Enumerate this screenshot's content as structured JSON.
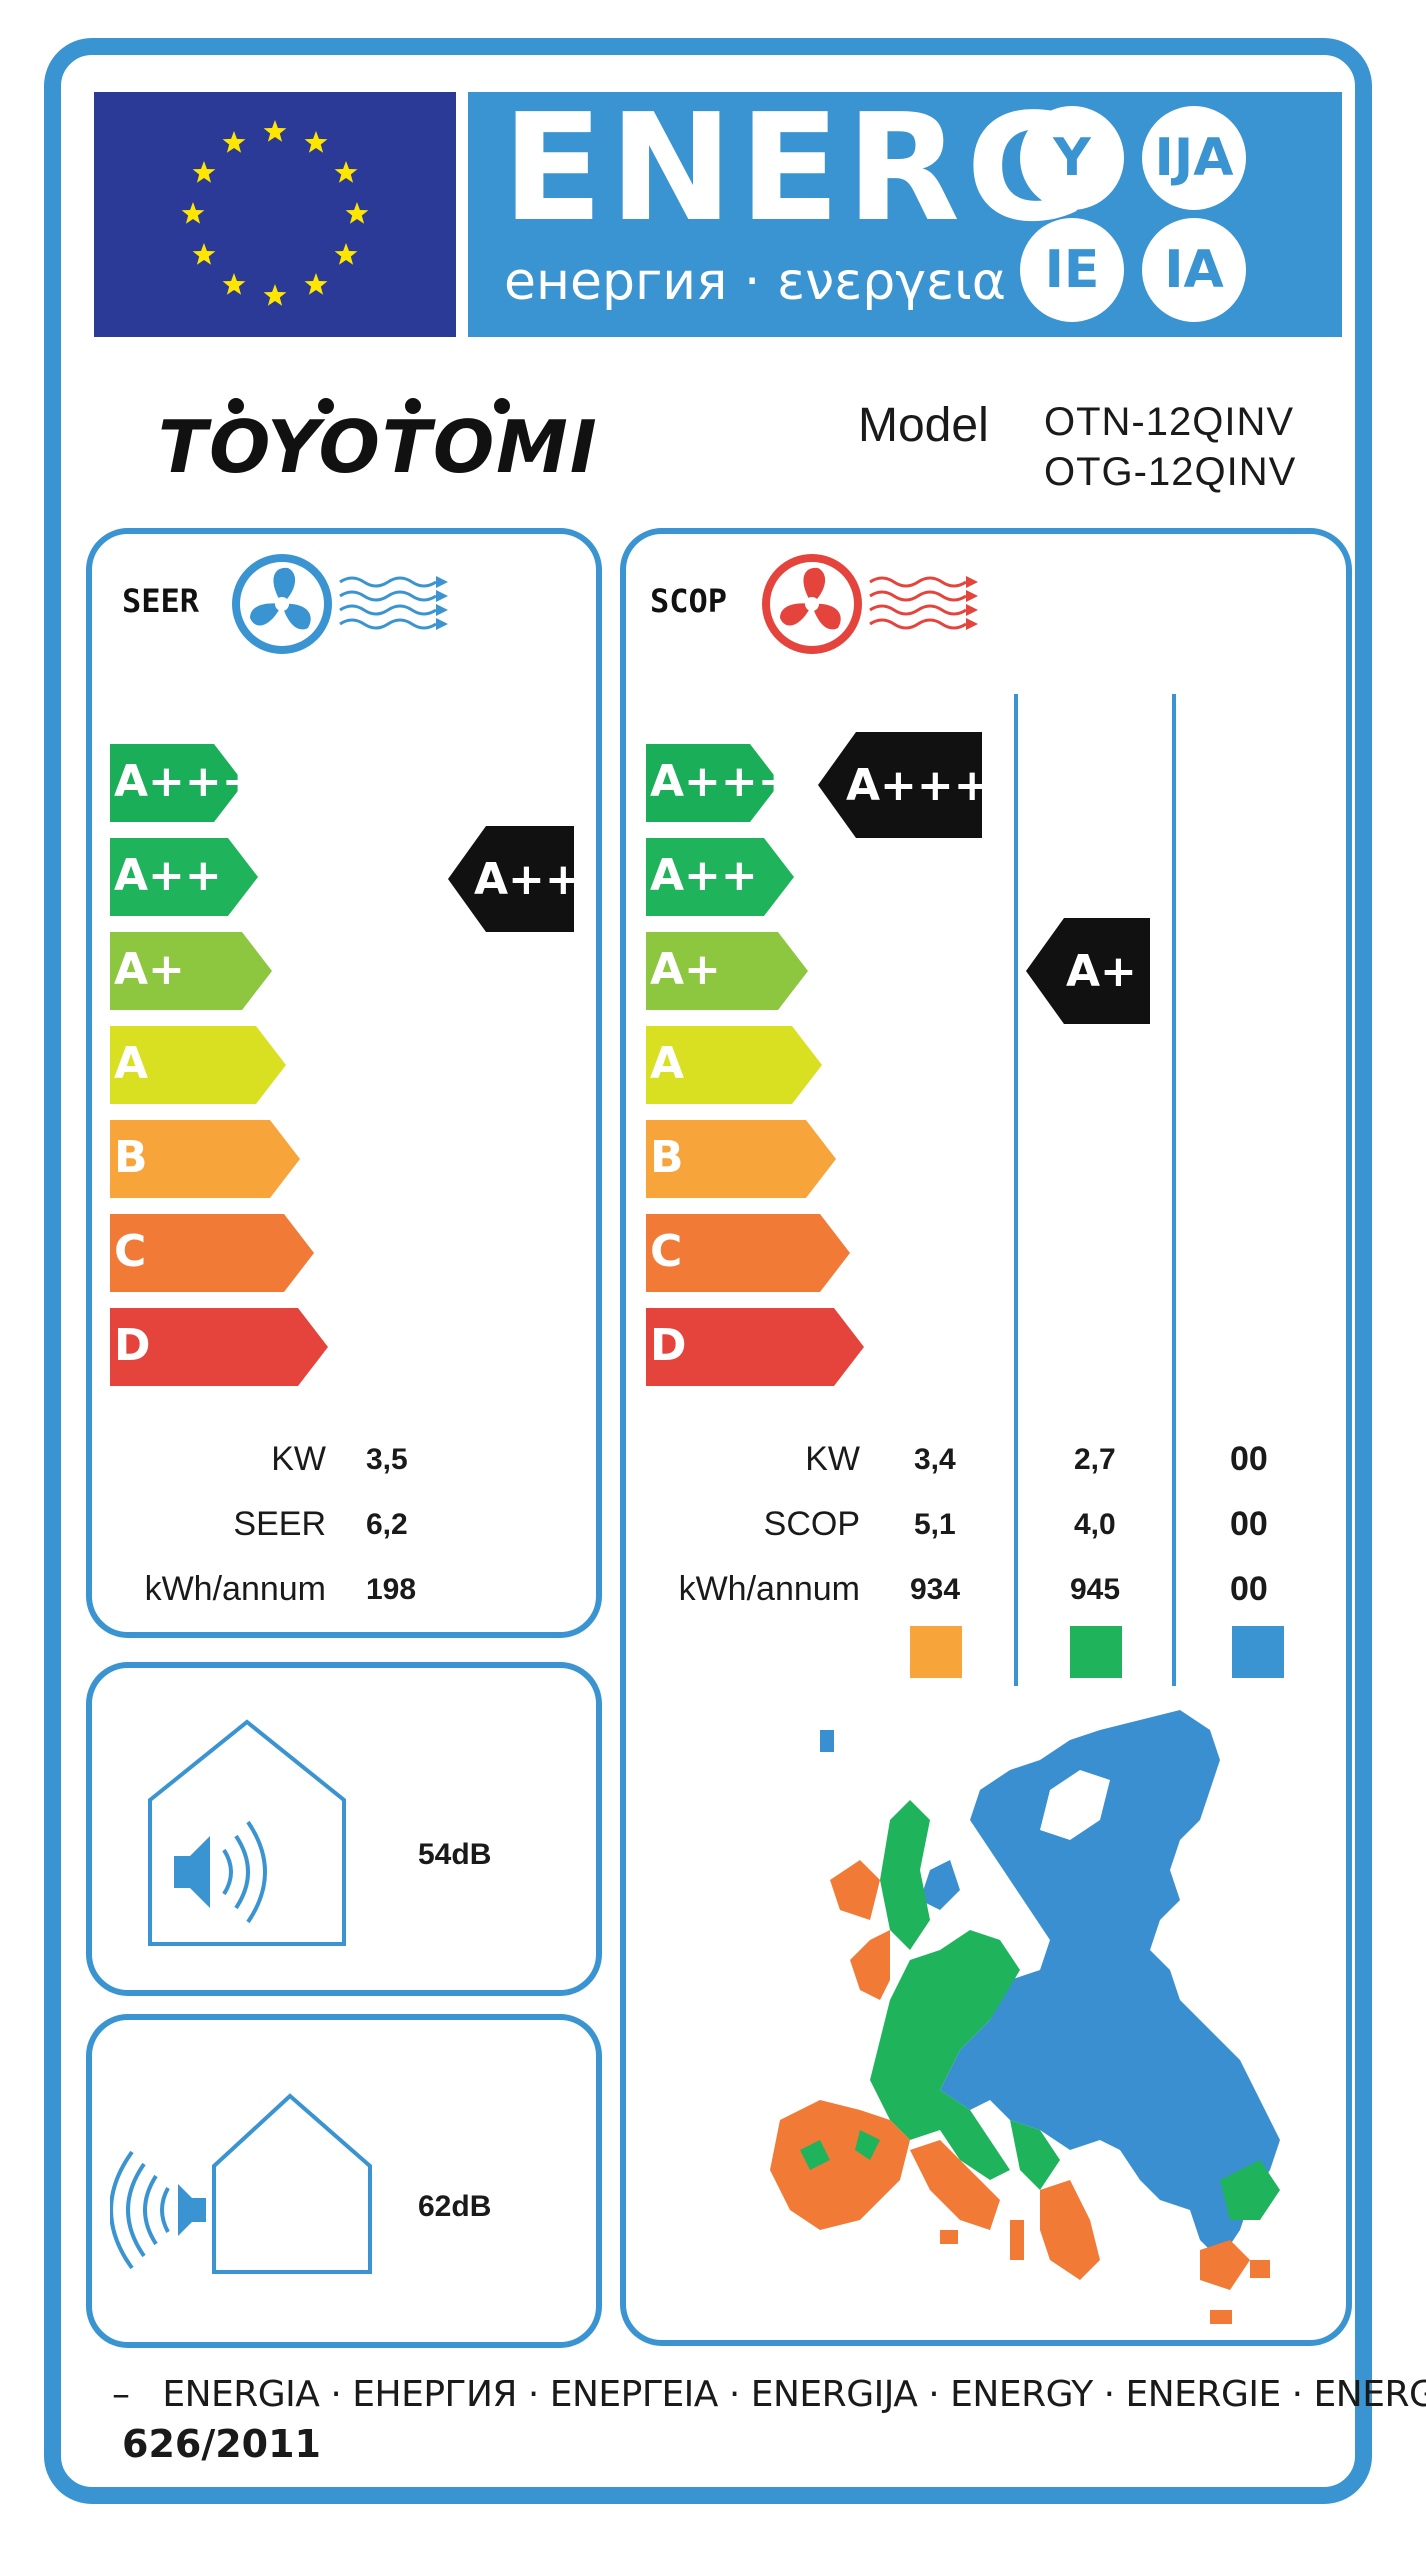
{
  "header": {
    "energy_word": "ENERG",
    "energy_sub": "енергия · ενεργεια",
    "suffixes": [
      "Y",
      "IJA",
      "IE",
      "IA"
    ]
  },
  "brand": {
    "name": "TOYOTOMI",
    "model_label": "Model",
    "models": [
      "OTN-12QINV",
      "OTG-12QINV"
    ]
  },
  "scale": {
    "classes": [
      "A+++",
      "A++",
      "A+",
      "A",
      "B",
      "C",
      "D"
    ],
    "colors": [
      "#1aae58",
      "#1fb35c",
      "#8dc63f",
      "#d9e021",
      "#f7a53b",
      "#f07a36",
      "#e4443b"
    ]
  },
  "cooling": {
    "label": "SEER",
    "icon": "fan-cooling-icon",
    "class": "A++",
    "rows": [
      {
        "label": "KW",
        "value": "3,5"
      },
      {
        "label": "SEER",
        "value": "6,2"
      },
      {
        "label": "kWh/annum",
        "value": "198"
      }
    ]
  },
  "heating": {
    "label": "SCOP",
    "icon": "fan-heating-icon",
    "zone_classes": [
      "A+++",
      "A+",
      ""
    ],
    "row_labels": [
      "KW",
      "SCOP",
      "kWh/annum"
    ],
    "zones": [
      {
        "values": [
          "3,4",
          "5,1",
          "934"
        ],
        "color": "#f7a53b"
      },
      {
        "values": [
          "2,7",
          "4,0",
          "945"
        ],
        "color": "#1fb35c"
      },
      {
        "values": [
          "00",
          "00",
          "00"
        ],
        "color": "#3a94d1"
      }
    ]
  },
  "noise": {
    "indoor": {
      "icon": "indoor-speaker-house-icon",
      "value": "54dB"
    },
    "outdoor": {
      "icon": "outdoor-speaker-house-icon",
      "value": "62dB"
    }
  },
  "map": {
    "icon": "europe-climate-zones-map-icon"
  },
  "footer": {
    "languages": "ENERGIA · ЕНЕРГИЯ · ΕΝΕΡΓΕΙΑ · ENERGIJA · ENERGY · ENERGIE · ENERGI",
    "dash": "–",
    "regulation": "626/2011"
  }
}
